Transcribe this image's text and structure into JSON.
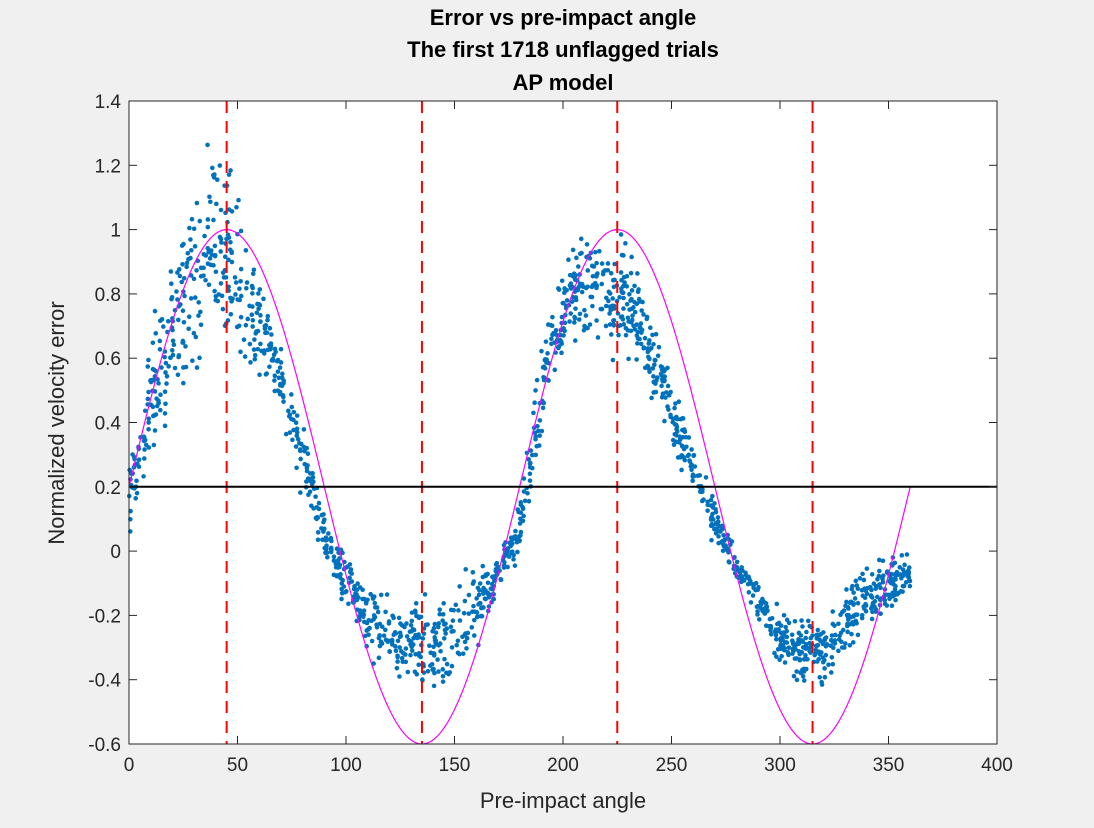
{
  "chart_data": {
    "type": "scatter",
    "title_lines": [
      "Error vs pre-impact angle",
      "The first 1718 unflagged trials",
      "AP model"
    ],
    "xlabel": "Pre-impact angle",
    "ylabel": "Normalized velocity error",
    "xlim": [
      0,
      400
    ],
    "ylim": [
      -0.6,
      1.4
    ],
    "xticks": [
      0,
      50,
      100,
      150,
      200,
      250,
      300,
      350,
      400
    ],
    "yticks": [
      -0.6,
      -0.4,
      -0.2,
      0,
      0.2,
      0.4,
      0.6,
      0.8,
      1,
      1.2,
      1.4
    ],
    "xtick_labels": [
      "0",
      "50",
      "100",
      "150",
      "200",
      "250",
      "300",
      "350",
      "400"
    ],
    "ytick_labels": [
      "-0.6",
      "-0.4",
      "-0.2",
      "0",
      "0.2",
      "0.4",
      "0.6",
      "0.8",
      "1",
      "1.2",
      "1.4"
    ],
    "grid": false,
    "legend": "none",
    "colors": {
      "scatter": "#0072bd",
      "model_curve": "#ff00ff",
      "vertical_lines": "#ff0000",
      "reference_line": "#000000",
      "axes_background": "#ffffff",
      "figure_background": "#f0f0f0"
    },
    "model_curve": {
      "formula": "0.2 + 0.8*sin(2*angle_deg)",
      "x_range": [
        0,
        360
      ],
      "samples": [
        {
          "x": 0,
          "y": 0.2
        },
        {
          "x": 45,
          "y": 1.0
        },
        {
          "x": 90,
          "y": 0.2
        },
        {
          "x": 135,
          "y": -0.6
        },
        {
          "x": 180,
          "y": 0.2
        },
        {
          "x": 225,
          "y": 1.0
        },
        {
          "x": 270,
          "y": 0.2
        },
        {
          "x": 315,
          "y": -0.6
        },
        {
          "x": 360,
          "y": 0.2
        }
      ]
    },
    "reference_line_y": 0.2,
    "vertical_lines_x": [
      45,
      135,
      225,
      315
    ],
    "scatter_envelope": [
      {
        "x": 0,
        "low": 0.0,
        "high": 0.3
      },
      {
        "x": 10,
        "low": 0.2,
        "high": 0.7
      },
      {
        "x": 20,
        "low": 0.35,
        "high": 1.0
      },
      {
        "x": 30,
        "low": 0.45,
        "high": 1.25
      },
      {
        "x": 40,
        "low": 0.5,
        "high": 1.38
      },
      {
        "x": 50,
        "low": 0.55,
        "high": 1.15
      },
      {
        "x": 60,
        "low": 0.5,
        "high": 0.9
      },
      {
        "x": 70,
        "low": 0.4,
        "high": 0.7
      },
      {
        "x": 80,
        "low": 0.1,
        "high": 0.45
      },
      {
        "x": 90,
        "low": -0.05,
        "high": 0.15
      },
      {
        "x": 100,
        "low": -0.2,
        "high": 0.0
      },
      {
        "x": 110,
        "low": -0.35,
        "high": -0.05
      },
      {
        "x": 120,
        "low": -0.45,
        "high": -0.1
      },
      {
        "x": 130,
        "low": -0.45,
        "high": -0.1
      },
      {
        "x": 140,
        "low": -0.5,
        "high": -0.1
      },
      {
        "x": 150,
        "low": -0.45,
        "high": -0.05
      },
      {
        "x": 160,
        "low": -0.35,
        "high": 0.0
      },
      {
        "x": 170,
        "low": -0.15,
        "high": 0.0
      },
      {
        "x": 180,
        "low": -0.05,
        "high": 0.2
      },
      {
        "x": 190,
        "low": 0.3,
        "high": 0.7
      },
      {
        "x": 200,
        "low": 0.55,
        "high": 0.95
      },
      {
        "x": 210,
        "low": 0.6,
        "high": 1.05
      },
      {
        "x": 220,
        "low": 0.55,
        "high": 1.0
      },
      {
        "x": 230,
        "low": 0.55,
        "high": 1.03
      },
      {
        "x": 240,
        "low": 0.45,
        "high": 0.8
      },
      {
        "x": 250,
        "low": 0.3,
        "high": 0.6
      },
      {
        "x": 260,
        "low": 0.15,
        "high": 0.35
      },
      {
        "x": 270,
        "low": 0.0,
        "high": 0.2
      },
      {
        "x": 280,
        "low": -0.1,
        "high": 0.0
      },
      {
        "x": 290,
        "low": -0.25,
        "high": -0.05
      },
      {
        "x": 300,
        "low": -0.4,
        "high": -0.15
      },
      {
        "x": 310,
        "low": -0.48,
        "high": -0.15
      },
      {
        "x": 320,
        "low": -0.45,
        "high": -0.2
      },
      {
        "x": 330,
        "low": -0.35,
        "high": -0.1
      },
      {
        "x": 340,
        "low": -0.3,
        "high": 0.0
      },
      {
        "x": 350,
        "low": -0.2,
        "high": 0.0
      },
      {
        "x": 360,
        "low": -0.15,
        "high": 0.0
      }
    ],
    "scatter_point_count": 1718
  }
}
